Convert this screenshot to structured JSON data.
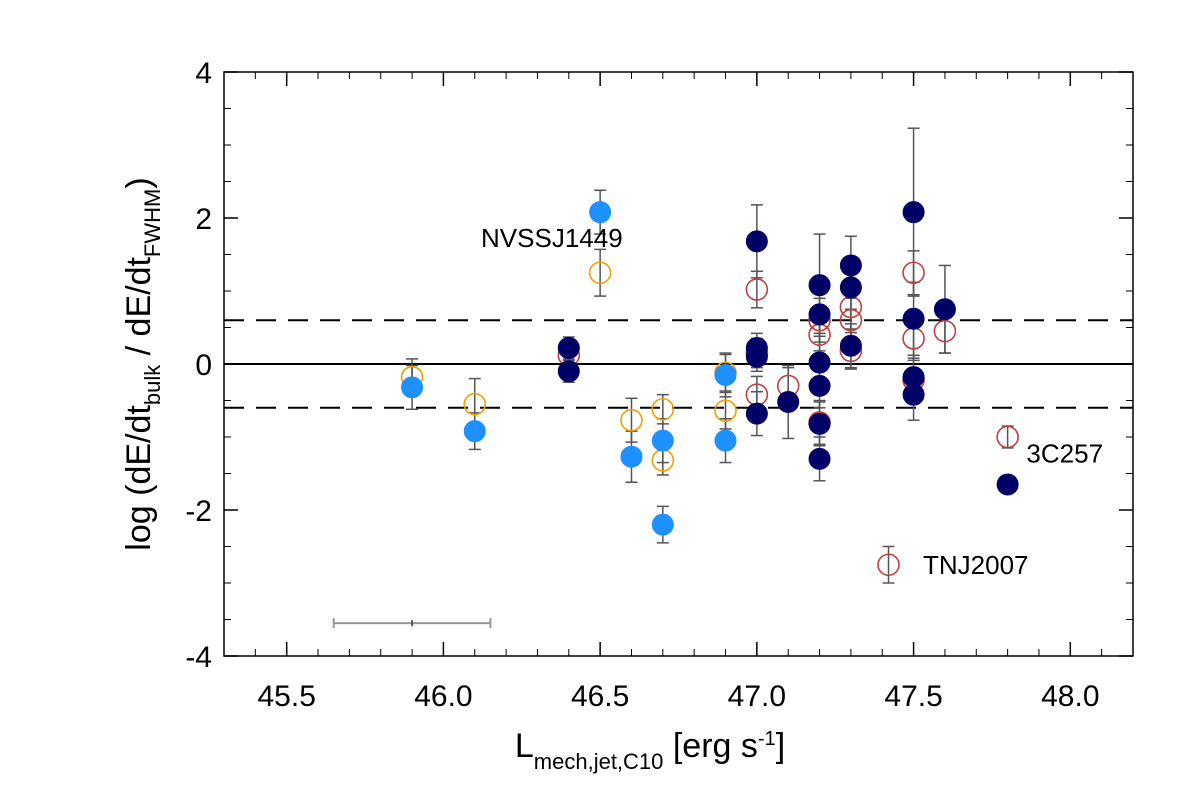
{
  "chart_data": {
    "type": "scatter",
    "title": "",
    "xlabel": {
      "main": "L",
      "subscript": "mech,jet,C10",
      "after": " [erg s",
      "superscript": "-1",
      "close": "]"
    },
    "ylabel": {
      "prefix": "log (dE/dt",
      "sub1": "bulk",
      "middle": " / dE/dt",
      "sub2": "FWHM",
      "suffix": ")"
    },
    "xlim": [
      45.3,
      48.2
    ],
    "ylim": [
      -4,
      4
    ],
    "xticks": [
      45.5,
      46.0,
      46.5,
      47.0,
      47.5,
      48.0
    ],
    "xtick_labels": [
      "45.5",
      "46.0",
      "46.5",
      "47.0",
      "47.5",
      "48.0"
    ],
    "yticks": [
      -4,
      -2,
      0,
      2,
      4
    ],
    "ytick_labels": [
      "-4",
      "-2",
      "0",
      "2",
      "4"
    ],
    "reference_lines": [
      {
        "y": 0,
        "style": "solid"
      },
      {
        "y": 0.6,
        "style": "dashed"
      },
      {
        "y": -0.6,
        "style": "dashed"
      }
    ],
    "colors": {
      "light_blue": "#1e90ff",
      "dark_blue": "#000066",
      "orange_open": "#f0a000",
      "red_open": "#c04040",
      "errorbar": "#555555",
      "grey_errorbar": "#999999"
    },
    "series": [
      {
        "name": "light blue filled",
        "marker": "filled",
        "color": "#1e90ff",
        "points": [
          {
            "x": 45.9,
            "y": -0.32,
            "err": 0.3
          },
          {
            "x": 46.1,
            "y": -0.92,
            "err": 0.25
          },
          {
            "x": 46.5,
            "y": 2.08,
            "err": 0.3
          },
          {
            "x": 46.6,
            "y": -1.27,
            "err": 0.35
          },
          {
            "x": 46.7,
            "y": -1.05,
            "err": 0.3
          },
          {
            "x": 46.7,
            "y": -2.2,
            "err": 0.25
          },
          {
            "x": 46.9,
            "y": -0.15,
            "err": 0.3
          },
          {
            "x": 46.9,
            "y": -1.05,
            "err": 0.3
          }
        ]
      },
      {
        "name": "orange open",
        "marker": "open",
        "color": "#f0a000",
        "points": [
          {
            "x": 45.9,
            "y": -0.18,
            "err": 0.25
          },
          {
            "x": 46.1,
            "y": -0.55,
            "err": 0.35
          },
          {
            "x": 46.5,
            "y": 1.25,
            "err": 0.32
          },
          {
            "x": 46.6,
            "y": -0.77,
            "err": 0.3
          },
          {
            "x": 46.7,
            "y": -0.62,
            "err": 0.2
          },
          {
            "x": 46.7,
            "y": -1.32,
            "err": 0.2
          },
          {
            "x": 46.9,
            "y": -0.12,
            "err": 0.25
          },
          {
            "x": 46.9,
            "y": -0.64,
            "err": 0.25
          }
        ]
      },
      {
        "name": "dark blue filled",
        "marker": "filled",
        "color": "#000066",
        "points": [
          {
            "x": 46.4,
            "y": 0.22,
            "err": 0.15
          },
          {
            "x": 46.4,
            "y": -0.1,
            "err": 0.15
          },
          {
            "x": 47.0,
            "y": 1.68,
            "err": 0.5
          },
          {
            "x": 47.0,
            "y": 0.22,
            "err": 0.2
          },
          {
            "x": 47.0,
            "y": 0.1,
            "err": 0.2
          },
          {
            "x": 47.0,
            "y": -0.68,
            "err": 0.3
          },
          {
            "x": 47.1,
            "y": -0.52,
            "err": 0.5
          },
          {
            "x": 47.2,
            "y": 1.08,
            "err": 0.7
          },
          {
            "x": 47.2,
            "y": 0.68,
            "err": 0.5
          },
          {
            "x": 47.2,
            "y": 0.02,
            "err": 0.4
          },
          {
            "x": 47.2,
            "y": -0.3,
            "err": 0.3
          },
          {
            "x": 47.2,
            "y": -0.82,
            "err": 0.3
          },
          {
            "x": 47.2,
            "y": -1.3,
            "err": 0.3
          },
          {
            "x": 47.3,
            "y": 1.35,
            "err": 0.4
          },
          {
            "x": 47.3,
            "y": 1.05,
            "err": 0.3
          },
          {
            "x": 47.3,
            "y": 0.25,
            "err": 0.3
          },
          {
            "x": 47.5,
            "y": 2.08,
            "err": 1.15
          },
          {
            "x": 47.5,
            "y": 0.62,
            "err": 0.5
          },
          {
            "x": 47.5,
            "y": -0.18,
            "err": 0.3
          },
          {
            "x": 47.5,
            "y": -0.42,
            "err": 0.35
          },
          {
            "x": 47.6,
            "y": 0.75,
            "err": 0.6
          },
          {
            "x": 47.8,
            "y": -1.65,
            "err": 0
          }
        ]
      },
      {
        "name": "red open",
        "marker": "open",
        "color": "#c04040",
        "points": [
          {
            "x": 46.4,
            "y": 0.12,
            "err": 0.2
          },
          {
            "x": 47.0,
            "y": 1.02,
            "err": 0.25
          },
          {
            "x": 47.0,
            "y": 0.15,
            "err": 0.2
          },
          {
            "x": 47.0,
            "y": -0.42,
            "err": 0.25
          },
          {
            "x": 47.1,
            "y": -0.3,
            "err": 0.25
          },
          {
            "x": 47.2,
            "y": 0.6,
            "err": 0.3
          },
          {
            "x": 47.2,
            "y": 0.4,
            "err": 0.3
          },
          {
            "x": 47.2,
            "y": -0.8,
            "err": 0.3
          },
          {
            "x": 47.3,
            "y": 0.78,
            "err": 0.3
          },
          {
            "x": 47.3,
            "y": 0.6,
            "err": 0.3
          },
          {
            "x": 47.3,
            "y": 0.18,
            "err": 0.25
          },
          {
            "x": 47.5,
            "y": 1.25,
            "err": 0.3
          },
          {
            "x": 47.5,
            "y": 0.35,
            "err": 0.3
          },
          {
            "x": 47.5,
            "y": -0.22,
            "err": 0.3
          },
          {
            "x": 47.6,
            "y": 0.45,
            "err": 0.3
          },
          {
            "x": 47.8,
            "y": -1.0,
            "err": 0.15
          },
          {
            "x": 47.42,
            "y": -2.75,
            "err": 0.25
          }
        ]
      }
    ],
    "typical_error": {
      "x": 45.9,
      "y": -3.55,
      "xerr_low": 45.65,
      "xerr_high": 46.15,
      "color": "#999999"
    },
    "annotations": [
      {
        "text": "NVSSJ1449",
        "x": 46.12,
        "y": 1.6
      },
      {
        "text": "3C257",
        "x": 47.86,
        "y": -1.35
      },
      {
        "text": "TNJ2007",
        "x": 47.53,
        "y": -2.88
      }
    ]
  }
}
